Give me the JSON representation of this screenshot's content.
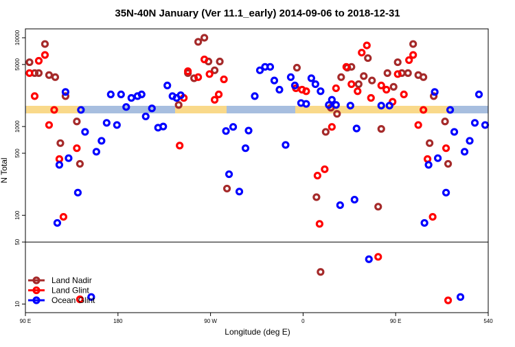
{
  "chart_data": {
    "type": "scatter",
    "title": "35N-40N January (Ver 11.1_early)   2014-09-06 to 2018-12-31",
    "xlabel": "Longitude (deg E)",
    "ylabel": "N Total",
    "xlim": [
      90,
      540
    ],
    "xticks": [
      {
        "value": 90,
        "label": "90 E"
      },
      180,
      {
        "value": 270,
        "label": "90 W"
      },
      {
        "value": 360,
        "label": "0"
      },
      {
        "value": 450,
        "label": "90 E"
      },
      540
    ],
    "ylim": [
      8,
      12600
    ],
    "log_y": true,
    "yticks": [
      10,
      50,
      100,
      500,
      1000,
      5000,
      10000
    ],
    "reference_line": 50,
    "legend": "bottomleft",
    "series": [
      {
        "name": "Land Nadir",
        "color": "#a52a2a",
        "x": [
          94,
          99,
          103,
          109,
          113,
          119,
          124,
          129,
          140,
          143,
          239,
          248,
          254,
          258,
          264,
          268,
          274,
          279,
          286,
          354,
          373,
          377,
          382,
          387,
          393,
          397,
          403,
          407,
          414,
          419,
          423,
          427,
          433,
          436,
          442,
          448,
          452,
          456,
          462,
          467,
          472,
          477,
          483,
          487,
          498,
          501
        ],
        "values": [
          5300,
          4000,
          4000,
          8500,
          3800,
          3600,
          650,
          2200,
          1140,
          380,
          1750,
          4000,
          3500,
          9000,
          10000,
          5400,
          4300,
          5400,
          200,
          4600,
          160,
          23,
          870,
          1630,
          1390,
          3600,
          4600,
          4700,
          3000,
          3700,
          5900,
          3300,
          125,
          940,
          4000,
          2800,
          5300,
          4000,
          4000,
          8500,
          3800,
          3600,
          650,
          2200,
          1140,
          380
        ]
      },
      {
        "name": "Land Glint",
        "color": "#ff0000",
        "x": [
          94,
          99,
          103,
          109,
          113,
          118,
          123,
          127,
          140,
          143,
          240,
          244,
          248,
          258,
          264,
          269,
          274,
          278,
          283,
          353,
          359,
          363,
          374,
          376,
          381,
          388,
          392,
          402,
          407,
          413,
          417,
          422,
          426,
          433,
          436,
          441,
          447,
          452,
          458,
          463,
          467,
          472,
          477,
          481,
          486,
          499,
          501
        ],
        "values": [
          4000,
          2200,
          5500,
          6400,
          1040,
          1540,
          430,
          96,
          570,
          11.3,
          610,
          2100,
          4200,
          3600,
          5700,
          3900,
          2000,
          2300,
          3400,
          2700,
          2600,
          2500,
          280,
          80,
          330,
          990,
          2700,
          4700,
          3000,
          2500,
          6800,
          8200,
          2100,
          34,
          2900,
          2600,
          1900,
          3900,
          2300,
          5600,
          6400,
          1040,
          1540,
          430,
          96,
          570,
          11
        ]
      },
      {
        "name": "Ocean Glint",
        "color": "#0000ff",
        "x": [
          121,
          123,
          129,
          132,
          141,
          144,
          148,
          154,
          159,
          164,
          169,
          173,
          179,
          183,
          188,
          193,
          199,
          203,
          207,
          213,
          219,
          224,
          228,
          233,
          237,
          241,
          285,
          288,
          292,
          298,
          304,
          307,
          313,
          318,
          323,
          328,
          332,
          337,
          343,
          348,
          352,
          358,
          363,
          368,
          372,
          377,
          385,
          388,
          392,
          396,
          406,
          410,
          412,
          424,
          436,
          444,
          478,
          482,
          488,
          491,
          499,
          503,
          507,
          513,
          517,
          522,
          527,
          531,
          537
        ],
        "values": [
          82,
          370,
          2450,
          440,
          180,
          1540,
          870,
          12,
          520,
          690,
          1100,
          2300,
          1040,
          2300,
          1660,
          2100,
          2200,
          2300,
          1300,
          1600,
          970,
          1000,
          2900,
          2200,
          2100,
          2250,
          890,
          290,
          990,
          185,
          570,
          900,
          2200,
          4300,
          4700,
          4700,
          3300,
          2600,
          620,
          3600,
          2900,
          1840,
          1800,
          3500,
          3000,
          2500,
          1750,
          2000,
          1750,
          130,
          1720,
          150,
          950,
          32,
          1720,
          1720,
          82,
          370,
          2450,
          440,
          180,
          1540,
          870,
          12,
          520,
          690,
          1100,
          2300,
          1040
        ]
      }
    ]
  }
}
